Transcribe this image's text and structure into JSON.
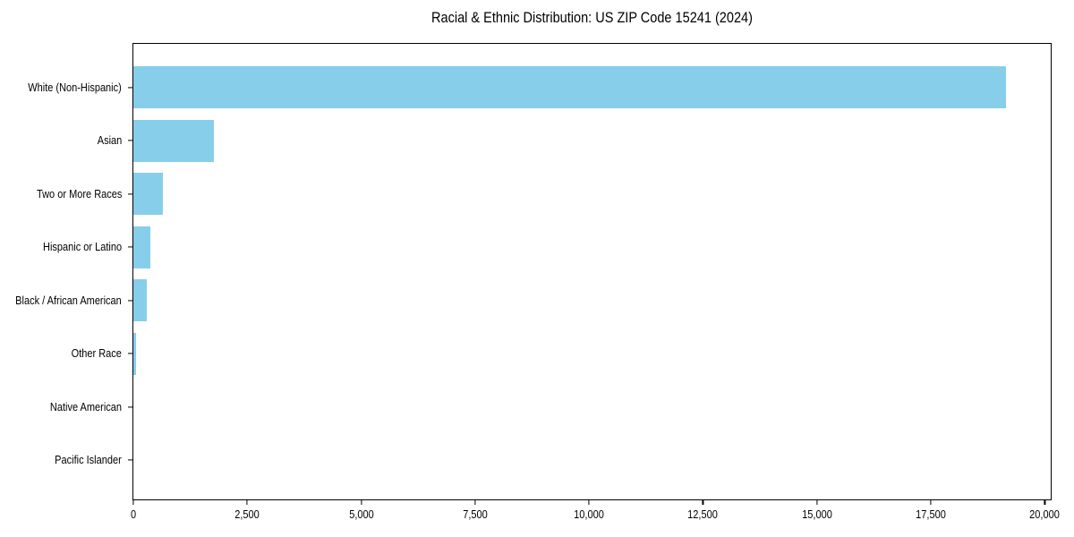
{
  "chart_data": {
    "type": "bar",
    "orientation": "horizontal",
    "title": "Racial & Ethnic Distribution: US ZIP Code 15241 (2024)",
    "categories": [
      "White (Non-Hispanic)",
      "Asian",
      "Two or More Races",
      "Hispanic or Latino",
      "Black / African American",
      "Other Race",
      "Native American",
      "Pacific Islander"
    ],
    "values": [
      19150,
      1770,
      650,
      365,
      285,
      58,
      0,
      0
    ],
    "xlabel": "",
    "ylabel": "",
    "xlim": [
      0,
      20130
    ],
    "x_ticks": [
      0,
      2500,
      5000,
      7500,
      10000,
      12500,
      15000,
      17500,
      20000
    ],
    "x_tick_labels": [
      "0",
      "2,500",
      "5,000",
      "7,500",
      "10,000",
      "12,500",
      "15,000",
      "17,500",
      "20,000"
    ],
    "grid": false,
    "legend": "none",
    "bar_color": "#87CEEB",
    "axis_color": "#000000",
    "background_color": "#FFFFFF"
  }
}
